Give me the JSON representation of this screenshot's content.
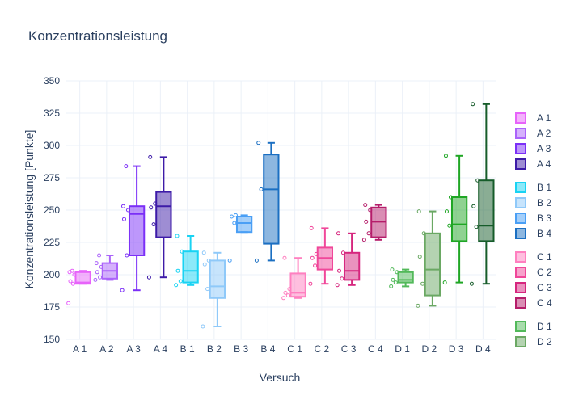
{
  "chart_data": {
    "type": "box",
    "title": "Konzentrationsleistung",
    "xlabel": "Versuch",
    "ylabel": "Konzentrationsleistung [Punkte]",
    "ylim": [
      150,
      350
    ],
    "yticks": [
      150,
      175,
      200,
      225,
      250,
      275,
      300,
      325,
      350
    ],
    "grid": true,
    "legend_position": "right",
    "series": [
      {
        "name": "A 1",
        "color": "#e763fa",
        "q1": 193,
        "median": 194,
        "q3": 202,
        "whisker_low": 193,
        "whisker_high": 203,
        "points": [
          178,
          193,
          195,
          200,
          202,
          203
        ]
      },
      {
        "name": "A 2",
        "color": "#ab63fa",
        "q1": 197,
        "median": 203,
        "q3": 209,
        "whisker_low": 196,
        "whisker_high": 215,
        "points": [
          196,
          198,
          202,
          206,
          209,
          215
        ]
      },
      {
        "name": "A 3",
        "color": "#7b2ff7",
        "q1": 215,
        "median": 247,
        "q3": 253,
        "whisker_low": 188,
        "whisker_high": 284,
        "points": [
          188,
          215,
          243,
          250,
          253,
          284
        ]
      },
      {
        "name": "A 4",
        "color": "#3d1ba8",
        "q1": 229,
        "median": 253,
        "q3": 264,
        "whisker_low": 198,
        "whisker_high": 291,
        "points": [
          198,
          239,
          252,
          255,
          291
        ]
      },
      {
        "name": "B 1",
        "color": "#19d3f3",
        "q1": 194,
        "median": 203,
        "q3": 218,
        "whisker_low": 192,
        "whisker_high": 230,
        "points": [
          192,
          195,
          203,
          218,
          230
        ]
      },
      {
        "name": "B 2",
        "color": "#8fc9f9",
        "q1": 182,
        "median": 191,
        "q3": 211,
        "whisker_low": 160,
        "whisker_high": 217,
        "points": [
          160,
          189,
          208,
          211,
          217
        ]
      },
      {
        "name": "B 3",
        "color": "#4a9ff5",
        "q1": 233,
        "median": 240,
        "q3": 245,
        "whisker_low": 233,
        "whisker_high": 246,
        "points": [
          211,
          240,
          245,
          246
        ]
      },
      {
        "name": "B 4",
        "color": "#1b6fc2",
        "q1": 224,
        "median": 266,
        "q3": 293,
        "whisker_low": 211,
        "whisker_high": 302,
        "points": [
          211,
          266,
          302
        ]
      },
      {
        "name": "C 1",
        "color": "#ff80c0",
        "q1": 183,
        "median": 186,
        "q3": 201,
        "whisker_low": 182,
        "whisker_high": 213,
        "points": [
          182,
          184,
          186,
          189,
          213
        ]
      },
      {
        "name": "C 2",
        "color": "#f0479a",
        "q1": 204,
        "median": 213,
        "q3": 221,
        "whisker_low": 193,
        "whisker_high": 236,
        "points": [
          193,
          207,
          213,
          216,
          236
        ]
      },
      {
        "name": "C 3",
        "color": "#d6267e",
        "q1": 196,
        "median": 203,
        "q3": 217,
        "whisker_low": 192,
        "whisker_high": 232,
        "points": [
          192,
          197,
          203,
          217,
          232
        ]
      },
      {
        "name": "C 4",
        "color": "#b51d6a",
        "q1": 229,
        "median": 241,
        "q3": 252,
        "whisker_low": 227,
        "whisker_high": 254,
        "points": [
          227,
          232,
          241,
          250,
          254
        ]
      },
      {
        "name": "D 1",
        "color": "#52b95a",
        "q1": 194,
        "median": 196,
        "q3": 202,
        "whisker_low": 191,
        "whisker_high": 204,
        "points": [
          191,
          194,
          196,
          202,
          204
        ]
      },
      {
        "name": "D 2",
        "color": "#6aa863",
        "q1": 184,
        "median": 204,
        "q3": 232,
        "whisker_low": 176,
        "whisker_high": 249,
        "points": [
          176,
          193,
          214,
          232,
          249
        ]
      },
      {
        "name": "D 3",
        "color": "#1fa624",
        "q1": 226,
        "median": 239,
        "q3": 260,
        "whisker_low": 194,
        "whisker_high": 292,
        "points": [
          194,
          238,
          249,
          260,
          292
        ]
      },
      {
        "name": "D 4",
        "color": "#165c2a",
        "q1": 226,
        "median": 238,
        "q3": 273,
        "whisker_low": 193,
        "whisker_high": 332,
        "points": [
          193,
          237,
          253,
          273,
          332
        ]
      }
    ],
    "legend_visible": [
      "A 1",
      "A 2",
      "A 3",
      "A 4",
      "B 1",
      "B 2",
      "B 3",
      "B 4",
      "C 1",
      "C 2",
      "C 3",
      "C 4",
      "D 1",
      "D 2"
    ]
  }
}
